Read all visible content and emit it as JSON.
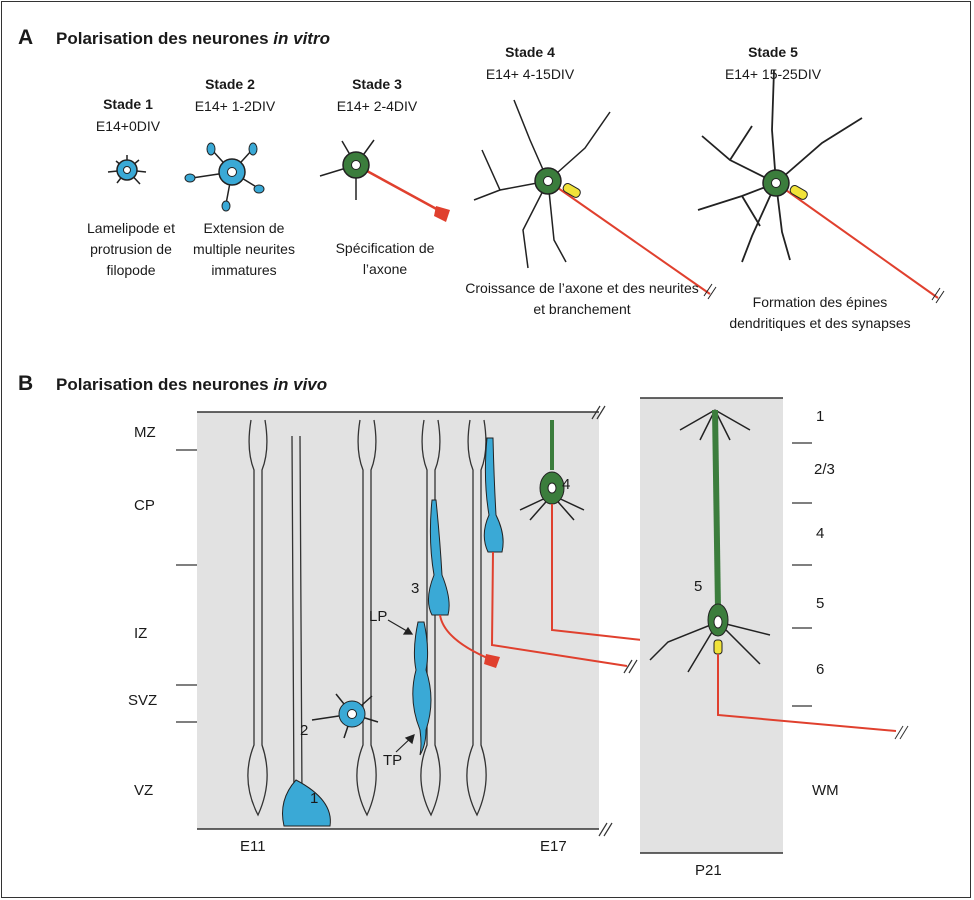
{
  "panelA": {
    "letter": "A",
    "title_prefix": "Polarisation des neurones ",
    "title_italic": "in vitro",
    "stages": [
      {
        "title": "Stade 1",
        "sub": "E14+0DIV",
        "caption": "Lamelipode et protrusion de filopode"
      },
      {
        "title": "Stade 2",
        "sub": "E14+ 1-2DIV",
        "caption": "Extension de multiple neurites immatures"
      },
      {
        "title": "Stade 3",
        "sub": "E14+ 2-4DIV",
        "caption": "Spécification de l’axone"
      },
      {
        "title": "Stade 4",
        "sub": "E14+ 4-15DIV",
        "caption": "Croissance de l’axone et des neurites et branchement"
      },
      {
        "title": "Stade 5",
        "sub": "E14+ 15-25DIV",
        "caption": "Formation des épines dendritiques et des synapses"
      }
    ]
  },
  "panelB": {
    "letter": "B",
    "title_prefix": "Polarisation des neurones ",
    "title_italic": "in vivo",
    "zones": [
      "MZ",
      "CP",
      "IZ",
      "SVZ",
      "VZ"
    ],
    "cell_labels": [
      "1",
      "2",
      "3",
      "4",
      "5"
    ],
    "arrow_labels": {
      "lp": "LP",
      "tp": "TP"
    },
    "time_labels": {
      "left": "E11",
      "right": "E17",
      "adult": "P21"
    },
    "layers": [
      "1",
      "2/3",
      "4",
      "5",
      "6",
      "WM"
    ]
  },
  "colors": {
    "blue": "#3aa9d6",
    "green": "#3b7d3c",
    "red": "#e0402e",
    "yellow": "#f1e33a",
    "grey": "#e2e2e2"
  }
}
